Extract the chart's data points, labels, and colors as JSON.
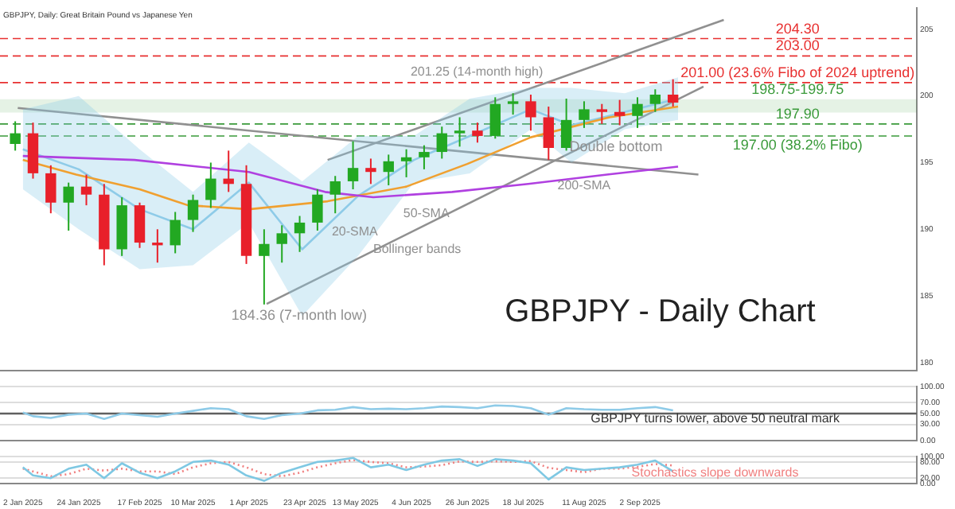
{
  "chart_data": [
    {
      "type": "candlestick",
      "title": "GBPJPY - Daily Chart",
      "subtitle": "GBPJPY, Daily: Great Britain Pound vs Japanese Yen",
      "x": [
        "2024-12-30",
        "2025-01-06",
        "2025-01-13",
        "2025-01-20",
        "2025-01-27",
        "2025-02-03",
        "2025-02-10",
        "2025-02-17",
        "2025-02-24",
        "2025-03-03",
        "2025-03-10",
        "2025-03-17",
        "2025-03-24",
        "2025-03-31",
        "2025-04-07",
        "2025-04-14",
        "2025-04-21",
        "2025-04-28",
        "2025-05-05",
        "2025-05-12",
        "2025-05-19",
        "2025-05-26",
        "2025-06-02",
        "2025-06-09",
        "2025-06-16",
        "2025-06-23",
        "2025-06-30",
        "2025-07-07",
        "2025-07-14",
        "2025-07-21",
        "2025-07-28",
        "2025-08-04",
        "2025-08-11",
        "2025-08-18",
        "2025-08-25",
        "2025-09-01",
        "2025-09-08",
        "2025-09-15"
      ],
      "ohlc": [
        [
          196.4,
          198.1,
          195.9,
          197.2
        ],
        [
          197.2,
          198.0,
          193.8,
          194.2
        ],
        [
          194.2,
          194.8,
          191.2,
          192.0
        ],
        [
          192.0,
          193.5,
          189.9,
          193.2
        ],
        [
          193.2,
          194.1,
          191.8,
          192.6
        ],
        [
          192.6,
          193.4,
          187.3,
          188.5
        ],
        [
          188.5,
          192.4,
          188.0,
          191.8
        ],
        [
          191.8,
          192.0,
          188.6,
          189.0
        ],
        [
          189.0,
          190.0,
          187.5,
          188.8
        ],
        [
          188.8,
          191.3,
          188.2,
          190.7
        ],
        [
          190.7,
          192.6,
          189.8,
          192.2
        ],
        [
          192.2,
          195.0,
          191.6,
          193.8
        ],
        [
          193.8,
          195.9,
          192.8,
          193.4
        ],
        [
          193.4,
          194.8,
          187.4,
          188.0
        ],
        [
          188.0,
          190.0,
          184.36,
          188.9
        ],
        [
          188.9,
          190.3,
          187.5,
          189.7
        ],
        [
          189.7,
          191.0,
          188.3,
          190.5
        ],
        [
          190.5,
          193.0,
          189.9,
          192.6
        ],
        [
          192.6,
          194.0,
          191.2,
          193.6
        ],
        [
          193.6,
          196.6,
          193.0,
          194.6
        ],
        [
          194.6,
          195.3,
          193.4,
          194.3
        ],
        [
          194.3,
          195.6,
          193.3,
          195.1
        ],
        [
          195.1,
          196.0,
          193.9,
          195.4
        ],
        [
          195.4,
          196.3,
          194.5,
          195.8
        ],
        [
          195.8,
          197.7,
          195.3,
          197.2
        ],
        [
          197.2,
          198.4,
          196.2,
          197.4
        ],
        [
          197.4,
          198.0,
          196.5,
          197.0
        ],
        [
          197.0,
          199.9,
          196.8,
          199.4
        ],
        [
          199.4,
          200.2,
          198.6,
          199.6
        ],
        [
          199.6,
          200.1,
          197.4,
          198.4
        ],
        [
          198.4,
          199.2,
          195.2,
          196.1
        ],
        [
          196.1,
          199.8,
          195.9,
          198.2
        ],
        [
          198.2,
          199.6,
          197.6,
          199.0
        ],
        [
          199.0,
          199.4,
          197.9,
          198.8
        ],
        [
          198.8,
          199.7,
          197.8,
          198.5
        ],
        [
          198.5,
          199.9,
          197.6,
          199.4
        ],
        [
          199.4,
          200.5,
          198.8,
          200.1
        ],
        [
          200.1,
          201.25,
          199.2,
          199.5
        ]
      ],
      "series": [
        {
          "type": "line",
          "color": "#b040e0",
          "x": [
            "2025-01-02",
            "2025-02-15",
            "2025-04-01",
            "2025-05-01",
            "2025-05-20",
            "2025-06-20",
            "2025-07-20",
            "2025-08-20",
            "2025-09-17"
          ],
          "values": [
            195.5,
            195.2,
            194.3,
            192.8,
            192.4,
            192.8,
            193.4,
            194.1,
            194.7
          ]
        },
        {
          "type": "line",
          "color": "#f0a030",
          "x": [
            "2025-01-02",
            "2025-01-23",
            "2025-02-17",
            "2025-03-08",
            "2025-04-01",
            "2025-05-02",
            "2025-06-02",
            "2025-06-26",
            "2025-07-21",
            "2025-08-21",
            "2025-09-17"
          ],
          "values": [
            195.2,
            194.1,
            193.0,
            191.8,
            191.5,
            192.1,
            193.2,
            194.9,
            196.9,
            198.4,
            199.2
          ]
        },
        {
          "type": "line",
          "color": "#8ecbe8",
          "x": [
            "2025-01-02",
            "2025-01-24",
            "2025-02-17",
            "2025-03-10",
            "2025-04-01",
            "2025-04-22",
            "2025-05-14",
            "2025-06-05",
            "2025-06-27",
            "2025-07-21",
            "2025-08-06",
            "2025-08-27",
            "2025-09-17"
          ],
          "values": [
            196.0,
            194.5,
            191.5,
            190.0,
            193.5,
            188.5,
            192.5,
            195.2,
            197.0,
            199.0,
            197.8,
            198.8,
            199.8
          ],
          "lower": [
            193.0,
            190.0,
            187.0,
            187.3,
            190.5,
            183.5,
            188.0,
            193.5,
            194.2,
            197.5,
            195.0,
            197.5,
            198.2
          ],
          "upper": [
            199.0,
            200.0,
            196.0,
            192.8,
            196.5,
            193.6,
            197.0,
            197.0,
            199.8,
            200.6,
            200.6,
            200.2,
            201.4
          ]
        },
        {
          "type": "line",
          "color": "#909090",
          "x": [
            "2025-04-08",
            "2025-09-27"
          ],
          "values": [
            184.4,
            200.7
          ]
        },
        {
          "type": "line",
          "color": "#909090",
          "x": [
            "2025-05-02",
            "2025-10-05"
          ],
          "values": [
            195.2,
            205.7
          ]
        },
        {
          "type": "line",
          "color": "#909090",
          "x": [
            "2024-12-31",
            "2025-09-25"
          ],
          "values": [
            199.1,
            194.1
          ]
        }
      ],
      "ref_lines": [
        {
          "axis": "y",
          "value": 204.3,
          "label": "204.30",
          "color": "#e83030",
          "line_style": "dashed"
        },
        {
          "axis": "y",
          "value": 203.0,
          "label": "203.00",
          "color": "#e83030",
          "line_style": "dashed"
        },
        {
          "axis": "y",
          "value": 201.0,
          "label": "201.00 (23.6% Fibo of 2024 uptrend)",
          "color": "#e83030",
          "line_style": "dashed"
        },
        {
          "axis": "y",
          "value": 197.9,
          "label": "197.90",
          "color": "#3a9a3a",
          "line_style": "dashed"
        },
        {
          "axis": "y",
          "value": 197.0,
          "label": "197.00 (38.2% Fibo)",
          "color": "#3a9a3a",
          "line_style": "dashed"
        }
      ],
      "bands": [
        {
          "axis": "y",
          "from": 198.75,
          "to": 199.75,
          "label": "198.75-199.75",
          "color": "#3a9a3a"
        }
      ],
      "annotations": [
        "201.25 (14-month high)",
        {
          "text": "184.36 (7-month low)",
          "x": "2025-04-07",
          "y": 184.36
        },
        {
          "text": "Double bottom",
          "x": "2025-08-11",
          "y": 197.6
        },
        "50-SMA",
        "20-SMA",
        "Bollinger bands",
        "200-SMA"
      ],
      "xlim": [
        "2024-12-24",
        "2025-12-20"
      ],
      "ylim": [
        179.4,
        206.6
      ],
      "yticks": [
        180,
        185,
        190,
        195,
        200,
        205
      ],
      "tick_labels": "y",
      "marker": "none",
      "legend": false,
      "grid": false
    },
    {
      "type": "line",
      "x": [
        "2025-01-02",
        "2025-01-06",
        "2025-01-13",
        "2025-01-20",
        "2025-01-27",
        "2025-02-03",
        "2025-02-10",
        "2025-02-17",
        "2025-02-24",
        "2025-03-03",
        "2025-03-10",
        "2025-03-17",
        "2025-03-24",
        "2025-03-31",
        "2025-04-07",
        "2025-04-14",
        "2025-04-21",
        "2025-04-28",
        "2025-05-05",
        "2025-05-12",
        "2025-05-19",
        "2025-05-26",
        "2025-06-02",
        "2025-06-09",
        "2025-06-16",
        "2025-06-23",
        "2025-06-30",
        "2025-07-07",
        "2025-07-14",
        "2025-07-21",
        "2025-07-28",
        "2025-08-04",
        "2025-08-11",
        "2025-08-18",
        "2025-08-25",
        "2025-09-01",
        "2025-09-08",
        "2025-09-15"
      ],
      "series": [
        {
          "color": "#8ecbe8",
          "values": [
            52,
            45,
            42,
            48,
            50,
            40,
            50,
            47,
            44,
            50,
            55,
            60,
            58,
            45,
            40,
            47,
            50,
            56,
            57,
            62,
            58,
            59,
            58,
            60,
            63,
            62,
            60,
            65,
            64,
            60,
            48,
            60,
            58,
            57,
            57,
            60,
            62,
            56
          ]
        }
      ],
      "ref_lines": [
        {
          "axis": "y",
          "value": 50,
          "color": "#606060",
          "line_style": "solid"
        }
      ],
      "annotations": [
        "GBPJPY turns lower, above 50 neutral mark"
      ],
      "xlim": [
        "2024-12-24",
        "2025-12-20"
      ],
      "ylim": [
        0,
        100
      ],
      "yticks": [
        {
          "value": 0,
          "label": "0.00"
        },
        {
          "value": 30,
          "label": "30.00"
        },
        {
          "value": 50,
          "label": "50.00"
        },
        {
          "value": 70,
          "label": "70.00"
        },
        {
          "value": 100,
          "label": "100.00"
        }
      ],
      "tick_labels": "y",
      "grid": "y",
      "marker": "none",
      "legend": false
    },
    {
      "type": "line",
      "x": [
        "2025-01-02",
        "2025-01-06",
        "2025-01-13",
        "2025-01-20",
        "2025-01-27",
        "2025-02-03",
        "2025-02-10",
        "2025-02-17",
        "2025-02-24",
        "2025-03-03",
        "2025-03-10",
        "2025-03-17",
        "2025-03-24",
        "2025-03-31",
        "2025-04-07",
        "2025-04-14",
        "2025-04-21",
        "2025-04-28",
        "2025-05-05",
        "2025-05-12",
        "2025-05-19",
        "2025-05-26",
        "2025-06-02",
        "2025-06-09",
        "2025-06-16",
        "2025-06-23",
        "2025-06-30",
        "2025-07-07",
        "2025-07-14",
        "2025-07-21",
        "2025-07-28",
        "2025-08-04",
        "2025-08-11",
        "2025-08-18",
        "2025-08-25",
        "2025-09-01",
        "2025-09-08",
        "2025-09-15"
      ],
      "series": [
        {
          "color": "#7ec8e3",
          "line_style": "solid",
          "values": [
            60,
            30,
            20,
            55,
            70,
            20,
            75,
            40,
            20,
            45,
            80,
            85,
            70,
            30,
            10,
            40,
            60,
            80,
            85,
            95,
            60,
            70,
            50,
            70,
            85,
            90,
            65,
            90,
            85,
            75,
            15,
            60,
            50,
            55,
            60,
            70,
            85,
            45
          ]
        },
        {
          "color": "#f08080",
          "line_style": "dotted",
          "values": [
            55,
            45,
            27,
            35,
            55,
            48,
            55,
            45,
            45,
            35,
            60,
            75,
            80,
            60,
            35,
            27,
            40,
            60,
            75,
            87,
            80,
            75,
            60,
            63,
            68,
            82,
            80,
            82,
            80,
            83,
            58,
            50,
            42,
            55,
            55,
            62,
            72,
            67
          ]
        }
      ],
      "annotations": [
        "Stochastics slope downwards"
      ],
      "xlim": [
        "2024-12-24",
        "2025-12-20"
      ],
      "ylim": [
        0,
        100
      ],
      "yticks": [
        {
          "value": 0,
          "label": "0.00"
        },
        {
          "value": 20,
          "label": "20.00"
        },
        {
          "value": 80,
          "label": "80.00"
        },
        {
          "value": 100,
          "label": "100.00"
        }
      ],
      "xticks": [
        {
          "value": "2025-01-02",
          "label": "2 Jan 2025"
        },
        {
          "value": "2025-01-24",
          "label": "24 Jan 2025"
        },
        {
          "value": "2025-02-17",
          "label": "17 Feb 2025"
        },
        {
          "value": "2025-03-10",
          "label": "10 Mar 2025"
        },
        {
          "value": "2025-04-01",
          "label": "1 Apr 2025"
        },
        {
          "value": "2025-04-23",
          "label": "23 Apr 2025"
        },
        {
          "value": "2025-05-13",
          "label": "13 May 2025"
        },
        {
          "value": "2025-06-04",
          "label": "4 Jun 2025"
        },
        {
          "value": "2025-06-26",
          "label": "26 Jun 2025"
        },
        {
          "value": "2025-07-18",
          "label": "18 Jul 2025"
        },
        {
          "value": "2025-08-11",
          "label": "11 Aug 2025"
        },
        {
          "value": "2025-09-02",
          "label": "2 Sep 2025"
        }
      ],
      "grid": "y",
      "marker": "none",
      "legend": false
    }
  ]
}
